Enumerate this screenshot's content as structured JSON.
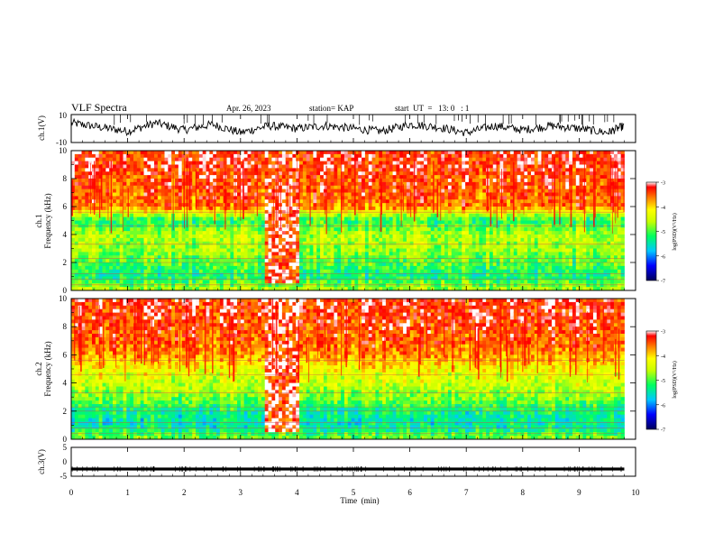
{
  "header": {
    "title": "VLF Spectra",
    "date": "Apr. 26, 2023",
    "station": "station= KAP",
    "start_ut": "start  UT  =   13: 0   : 1"
  },
  "x_axis": {
    "label": "Time  (min)",
    "ticks": [
      "0",
      "1",
      "2",
      "3",
      "4",
      "5",
      "6",
      "7",
      "8",
      "9",
      "10"
    ]
  },
  "ch1_waveform": {
    "label": "ch.1(V)",
    "top_tick": "10",
    "bottom_tick": "-10"
  },
  "ch1_spectrogram": {
    "label_line1": "ch.1",
    "label_line2": "Frequency  (kHz)"
  },
  "ch2_spectrogram": {
    "label_line1": "ch.2",
    "label_line2": "Frequency  (kHz)"
  },
  "ch3_waveform": {
    "label": "ch.3(V)",
    "top_tick": "5",
    "mid_tick": "0",
    "bottom_tick": "-5"
  },
  "colorbar": {
    "label": "log(PSD)(V²/Hz)",
    "ticks": [
      "-3",
      "-4",
      "-5",
      "-6",
      "-7"
    ],
    "colors": [
      "#00005a",
      "#0000ff",
      "#00c8ff",
      "#00ff60",
      "#c8ff00",
      "#ffff00",
      "#ff8000",
      "#ff0000",
      "#ffffff"
    ]
  },
  "chart_data": [
    {
      "type": "line",
      "title": "VLF Spectra",
      "ylabel": "ch.1(V)",
      "xlabel": "Time  (min)",
      "xlim": [
        0,
        10
      ],
      "ylim": [
        -10,
        10
      ],
      "x": [
        0,
        0.5,
        1,
        1.5,
        2,
        2.5,
        3,
        3.5,
        4,
        4.5,
        5,
        5.5,
        6,
        6.5,
        7,
        7.5,
        8,
        8.5,
        9,
        9.5,
        9.8
      ],
      "values": [
        4,
        1,
        -2,
        4,
        -1,
        3,
        -3,
        2,
        0,
        2,
        0,
        -2,
        3,
        1,
        -3,
        2,
        -1,
        2,
        0,
        -3,
        2
      ]
    },
    {
      "type": "heatmap",
      "ylabel": "Frequency  (kHz)",
      "channel": "ch.1",
      "xlim": [
        0,
        10
      ],
      "ylim": [
        0,
        10
      ],
      "data_end_min": 9.8,
      "zlim": [
        -7,
        -3
      ],
      "y_ticks": [
        "0",
        "2",
        "4",
        "6",
        "8",
        "10"
      ],
      "freq_levels_khz": [
        0,
        1,
        2,
        3,
        4,
        5,
        6,
        7,
        8,
        9,
        10
      ],
      "log_psd": [
        -4.6,
        -5.3,
        -5.0,
        -4.7,
        -4.6,
        -5.2,
        -3.6,
        -3.5,
        -3.4,
        -3.3,
        -3.3
      ],
      "burst_window_min": [
        3.4,
        4.05
      ],
      "burst_log_psd": -3.2
    },
    {
      "type": "heatmap",
      "ylabel": "Frequency  (kHz)",
      "channel": "ch.2",
      "xlim": [
        0,
        10
      ],
      "ylim": [
        0,
        10
      ],
      "data_end_min": 9.8,
      "zlim": [
        -7,
        -3
      ],
      "y_ticks": [
        "0",
        "2",
        "4",
        "6",
        "8",
        "10"
      ],
      "freq_levels_khz": [
        0,
        1,
        2,
        3,
        4,
        5,
        6,
        7,
        8,
        9,
        10
      ],
      "log_psd": [
        -4.8,
        -5.5,
        -5.3,
        -4.8,
        -4.5,
        -4.2,
        -3.7,
        -3.5,
        -3.4,
        -3.3,
        -3.3
      ],
      "burst_window_min": [
        3.4,
        4.05
      ],
      "burst_log_psd": -3.2
    },
    {
      "type": "line",
      "ylabel": "ch.3(V)",
      "xlim": [
        0,
        10
      ],
      "ylim": [
        -5,
        5
      ],
      "x": [
        0,
        9.8
      ],
      "values": [
        -2.5,
        -2.5
      ],
      "band_halfwidth": 0.5
    }
  ]
}
